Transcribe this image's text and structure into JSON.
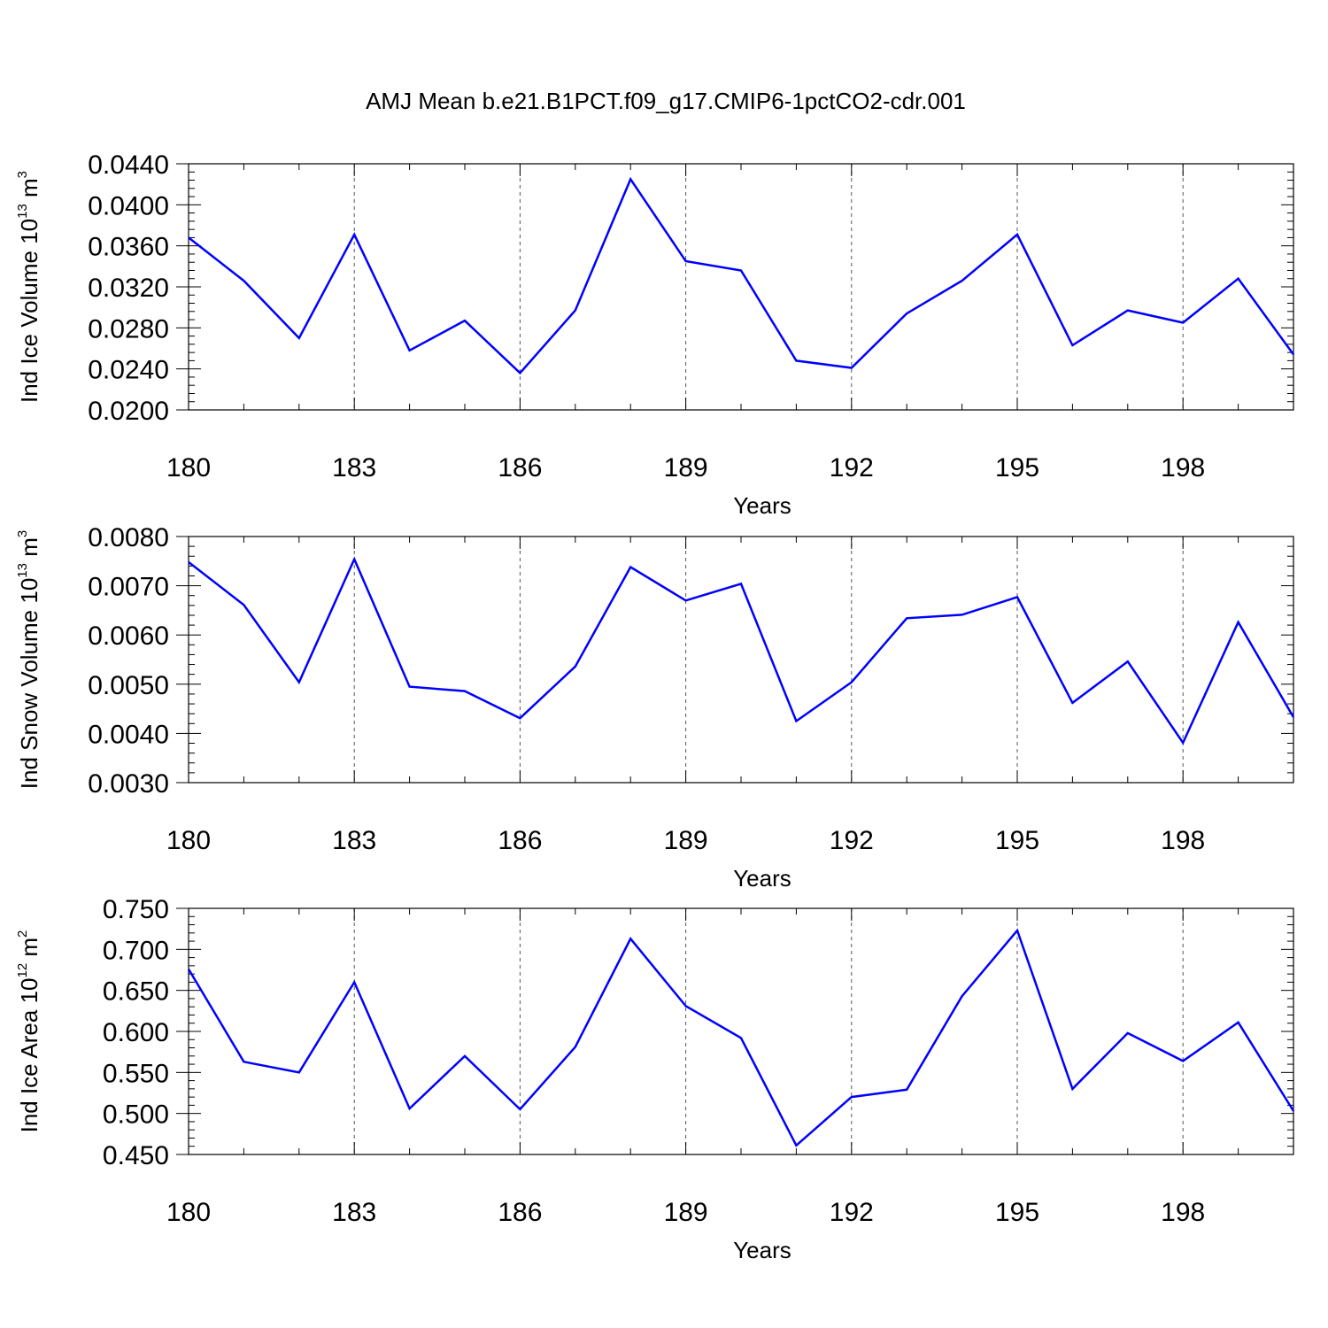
{
  "figure_title": "AMJ Mean b.e21.B1PCT.f09_g17.CMIP6-1pctCO2-cdr.001",
  "colors": {
    "line": "#0000ff",
    "axis": "#000000",
    "grid": "#555555"
  },
  "chart_data": [
    {
      "type": "line",
      "ylabel": {
        "text": "Ind Ice Volume 10",
        "sup": "13",
        "unit": " m",
        "unit_sup": "3"
      },
      "xlabel": "Years",
      "xlim": [
        180,
        200
      ],
      "ylim": [
        0.02,
        0.044
      ],
      "xticks": [
        180,
        183,
        186,
        189,
        192,
        195,
        198
      ],
      "xtick_labels": [
        "180",
        "183",
        "186",
        "189",
        "192",
        "195",
        "198"
      ],
      "yticks": [
        0.02,
        0.024,
        0.028,
        0.032,
        0.036,
        0.04,
        0.044
      ],
      "ytick_labels": [
        "0.0200",
        "0.0240",
        "0.0280",
        "0.0320",
        "0.0360",
        "0.0400",
        "0.0440"
      ],
      "grid": "vertical dashed at major x ticks",
      "x": [
        180,
        181,
        182,
        183,
        184,
        185,
        186,
        187,
        188,
        189,
        190,
        191,
        192,
        193,
        194,
        195,
        196,
        197,
        198,
        199,
        200
      ],
      "values": [
        0.0368,
        0.0326,
        0.027,
        0.0371,
        0.0258,
        0.0287,
        0.0236,
        0.0297,
        0.0425,
        0.0345,
        0.0336,
        0.0248,
        0.0241,
        0.0294,
        0.0326,
        0.0371,
        0.0263,
        0.0297,
        0.0285,
        0.0328,
        0.0254
      ]
    },
    {
      "type": "line",
      "ylabel": {
        "text": "Ind Snow Volume 10",
        "sup": "13",
        "unit": " m",
        "unit_sup": "3"
      },
      "xlabel": "Years",
      "xlim": [
        180,
        200
      ],
      "ylim": [
        0.003,
        0.008
      ],
      "xticks": [
        180,
        183,
        186,
        189,
        192,
        195,
        198
      ],
      "xtick_labels": [
        "180",
        "183",
        "186",
        "189",
        "192",
        "195",
        "198"
      ],
      "yticks": [
        0.003,
        0.004,
        0.005,
        0.006,
        0.007,
        0.008
      ],
      "ytick_labels": [
        "0.0030",
        "0.0040",
        "0.0050",
        "0.0060",
        "0.0070",
        "0.0080"
      ],
      "grid": "vertical dashed at major x ticks",
      "x": [
        180,
        181,
        182,
        183,
        184,
        185,
        186,
        187,
        188,
        189,
        190,
        191,
        192,
        193,
        194,
        195,
        196,
        197,
        198,
        199,
        200
      ],
      "values": [
        0.00748,
        0.00661,
        0.00504,
        0.00754,
        0.00495,
        0.00486,
        0.00431,
        0.00536,
        0.00738,
        0.0067,
        0.00704,
        0.00425,
        0.00504,
        0.00634,
        0.00641,
        0.00677,
        0.00462,
        0.00546,
        0.00381,
        0.00626,
        0.00433
      ]
    },
    {
      "type": "line",
      "ylabel": {
        "text": "Ind Ice Area 10",
        "sup": "12",
        "unit": " m",
        "unit_sup": "2"
      },
      "xlabel": "Years",
      "xlim": [
        180,
        200
      ],
      "ylim": [
        0.45,
        0.75
      ],
      "xticks": [
        180,
        183,
        186,
        189,
        192,
        195,
        198
      ],
      "xtick_labels": [
        "180",
        "183",
        "186",
        "189",
        "192",
        "195",
        "198"
      ],
      "yticks": [
        0.45,
        0.5,
        0.55,
        0.6,
        0.65,
        0.7,
        0.75
      ],
      "ytick_labels": [
        "0.450",
        "0.500",
        "0.550",
        "0.600",
        "0.650",
        "0.700",
        "0.750"
      ],
      "grid": "vertical dashed at major x ticks",
      "x": [
        180,
        181,
        182,
        183,
        184,
        185,
        186,
        187,
        188,
        189,
        190,
        191,
        192,
        193,
        194,
        195,
        196,
        197,
        198,
        199,
        200
      ],
      "values": [
        0.676,
        0.563,
        0.55,
        0.66,
        0.506,
        0.57,
        0.505,
        0.581,
        0.713,
        0.631,
        0.592,
        0.461,
        0.52,
        0.529,
        0.643,
        0.723,
        0.53,
        0.598,
        0.564,
        0.611,
        0.503
      ]
    }
  ]
}
